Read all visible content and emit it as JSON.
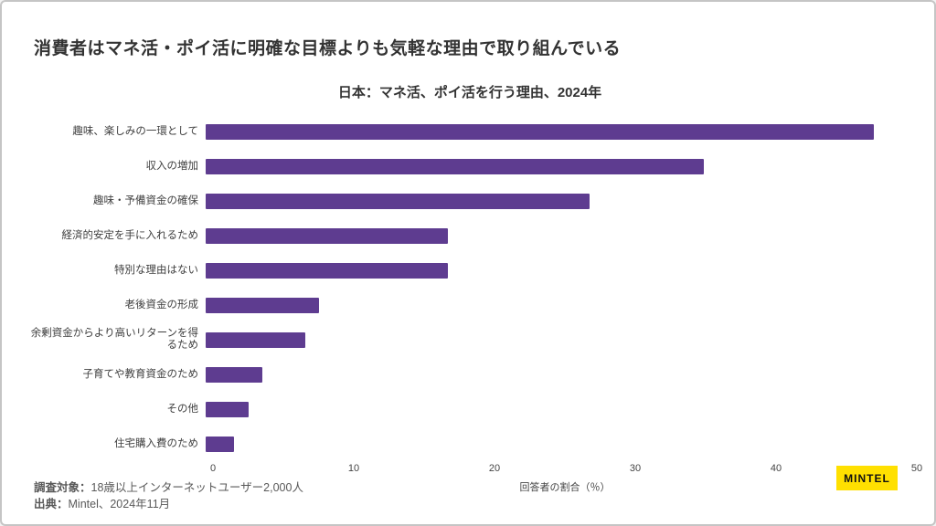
{
  "page": {
    "title": "消費者はマネ活・ポイ活に明確な目標よりも気軽な理由で取り組んでいる",
    "subtitle": "日本：マネ活、ポイ活を行う理由、2024年"
  },
  "chart_data": {
    "type": "bar",
    "orientation": "horizontal",
    "title": "日本：マネ活、ポイ活を行う理由、2024年",
    "categories": [
      "趣味、楽しみの一環として",
      "収入の増加",
      "趣味・予備資金の確保",
      "経済的安定を手に入れるため",
      "特別な理由はない",
      "老後資金の形成",
      "余剰資金からより高いリターンを得るため",
      "子育てや教育資金のため",
      "その他",
      "住宅購入費のため"
    ],
    "values": [
      47,
      35,
      27,
      17,
      17,
      8,
      7,
      4,
      3,
      2
    ],
    "xlabel": "回答者の割合（％）",
    "ylabel": "",
    "xlim": [
      0,
      50
    ],
    "xticks": [
      "0",
      "10",
      "20",
      "30",
      "40",
      "50"
    ],
    "grid": false,
    "legend": false,
    "bar_color": "#5E3C90"
  },
  "footer": {
    "survey_label": "調査対象：",
    "survey_text": "18歳以上インターネットユーザー2,000人",
    "source_label": "出典：",
    "source_text": "Mintel、2024年11月"
  },
  "logo": {
    "text": "MINTEL",
    "bg_color": "#FFE000"
  },
  "colors": {
    "bar": "#5E3C90",
    "title_text": "#333333",
    "label_text": "#404040",
    "footer_text": "#595959",
    "page_border": "#c5c5c5",
    "logo_bg": "#FFE000"
  }
}
